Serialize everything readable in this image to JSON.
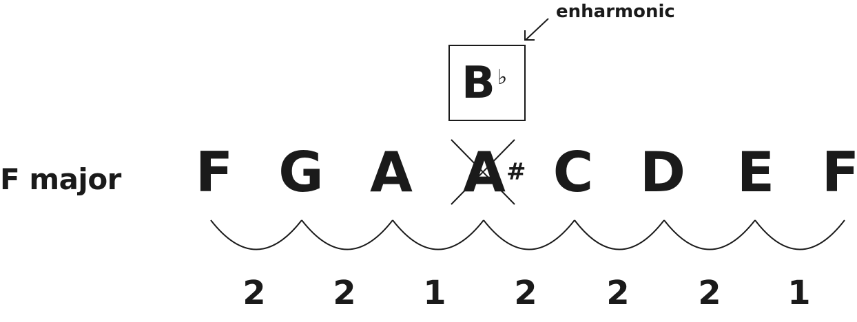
{
  "scale_name": "F major",
  "notes": [
    "F",
    "G",
    "A",
    "A",
    "C",
    "D",
    "E",
    "F"
  ],
  "crossed_note_index": 3,
  "sharp_symbol": "#",
  "enharmonic": {
    "note_letter": "B",
    "accidental": "♭",
    "label": "enharmonic"
  },
  "steps": [
    "2",
    "2",
    "1",
    "2",
    "2",
    "2",
    "1"
  ]
}
